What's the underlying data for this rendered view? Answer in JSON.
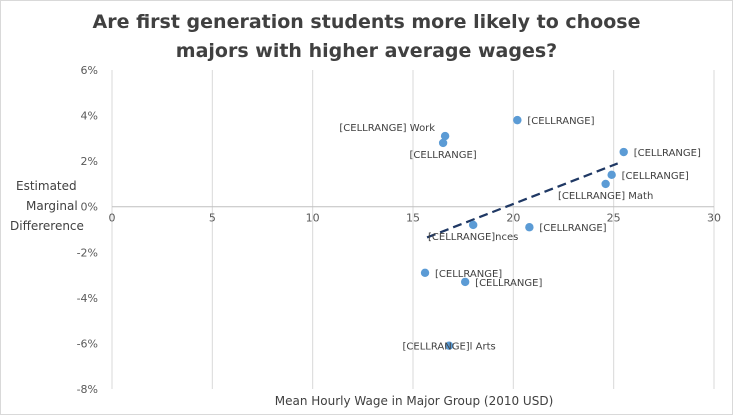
{
  "chart_data": {
    "type": "scatter",
    "title_lines": [
      "Are first generation students more likely to choose",
      "majors with higher average wages?"
    ],
    "xlabel": "Mean Hourly Wage in Major Group (2010 USD)",
    "ylabel_lines": [
      "Estimated",
      "Marginal",
      "Differerence"
    ],
    "xlim": [
      0,
      30
    ],
    "ylim": [
      -0.08,
      0.06
    ],
    "x_ticks": [
      0,
      5,
      10,
      15,
      20,
      25,
      30
    ],
    "x_tick_labels": [
      "0",
      "5",
      "10",
      "15",
      "20",
      "25",
      "30"
    ],
    "y_ticks": [
      0.06,
      0.04,
      0.02,
      0,
      -0.02,
      -0.04,
      -0.06,
      -0.08
    ],
    "y_tick_labels": [
      "6%",
      "4%",
      "2%",
      "0%",
      "-2%",
      "-4%",
      "-6%",
      "-8%"
    ],
    "grid": "vertical",
    "marker_color": "#5b9bd5",
    "trendline_color": "#1f3864",
    "points": [
      {
        "x": 16.6,
        "y": 0.031,
        "label": "[CELLRANGE] Work",
        "label_pos": "left"
      },
      {
        "x": 16.5,
        "y": 0.028,
        "label": "[CELLRANGE]",
        "label_pos": "below"
      },
      {
        "x": 20.2,
        "y": 0.038,
        "label": "[CELLRANGE]",
        "label_pos": "right"
      },
      {
        "x": 25.5,
        "y": 0.024,
        "label": "[CELLRANGE]",
        "label_pos": "right"
      },
      {
        "x": 24.9,
        "y": 0.014,
        "label": "[CELLRANGE]",
        "label_pos": "right"
      },
      {
        "x": 24.6,
        "y": 0.01,
        "label": "[CELLRANGE] Math",
        "label_pos": "below"
      },
      {
        "x": 18.0,
        "y": -0.008,
        "label": "[CELLRANGE]nces",
        "label_pos": "below"
      },
      {
        "x": 20.8,
        "y": -0.009,
        "label": "[CELLRANGE]",
        "label_pos": "right"
      },
      {
        "x": 15.6,
        "y": -0.029,
        "label": "[CELLRANGE]",
        "label_pos": "right"
      },
      {
        "x": 17.6,
        "y": -0.033,
        "label": "[CELLRANGE]",
        "label_pos": "right"
      },
      {
        "x": 16.8,
        "y": -0.061,
        "label": "[CELLRANGE]l Arts",
        "label_pos": "center"
      }
    ],
    "trendline": {
      "x": [
        15.7,
        25.2
      ],
      "y": [
        -0.0135,
        0.019
      ],
      "style": "dashed"
    }
  }
}
